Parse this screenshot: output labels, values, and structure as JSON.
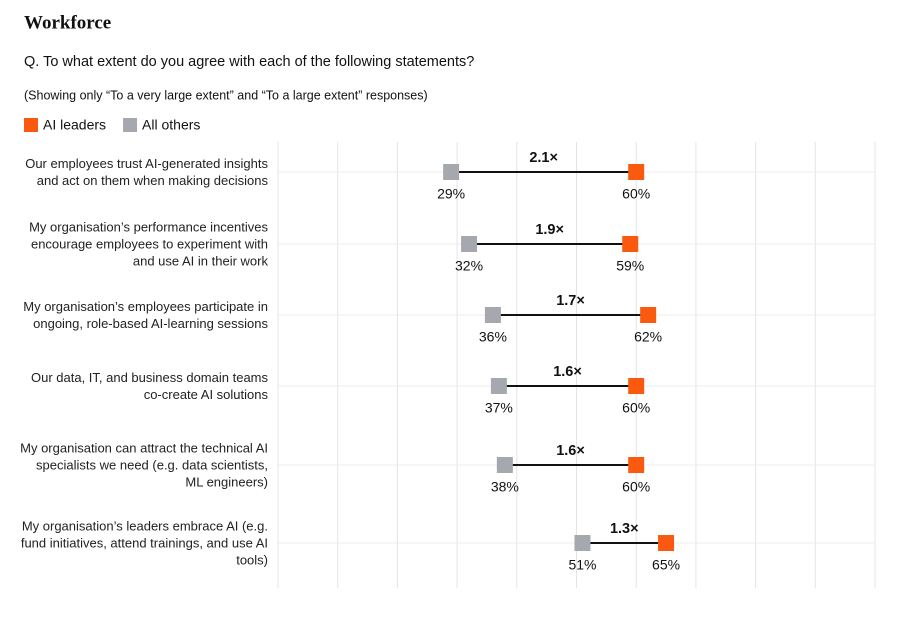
{
  "chart_data": {
    "type": "dumbbell",
    "title": "Workforce",
    "subtitle": "Q. To what extent do you agree with each of the following statements?",
    "note": "(Showing only “To a very large extent” and “To a large extent” responses)",
    "categories": [
      "Our employees trust AI-generated insights and act on them when making decisions",
      "My organisation’s performance incentives encourage employees to experiment with and use AI in their work",
      "My organisation’s employees participate in ongoing, role-based AI-learning sessions",
      "Our data, IT, and business domain teams co-create AI solutions",
      "My organisation can attract the technical AI specialists we need (e.g. data scientists, ML engineers)",
      "My organisation’s leaders embrace AI (e.g. fund initiatives, attend trainings, and use AI tools)"
    ],
    "series": [
      {
        "name": "AI leaders",
        "color": "#fa5a0f",
        "values": [
          60,
          59,
          62,
          60,
          60,
          65
        ],
        "value_labels": [
          "60%",
          "59%",
          "62%",
          "60%",
          "60%",
          "65%"
        ]
      },
      {
        "name": "All others",
        "color": "#a5a8ae",
        "values": [
          29,
          32,
          36,
          37,
          38,
          51
        ],
        "value_labels": [
          "29%",
          "32%",
          "36%",
          "37%",
          "38%",
          "51%"
        ]
      }
    ],
    "ratio_labels": [
      "2.1×",
      "1.9×",
      "1.7×",
      "1.6×",
      "1.6×",
      "1.3×"
    ],
    "xlim": [
      0,
      100
    ],
    "xticks": [
      0,
      10,
      20,
      30,
      40,
      50,
      60,
      70,
      80,
      90,
      100
    ],
    "grid": true
  }
}
